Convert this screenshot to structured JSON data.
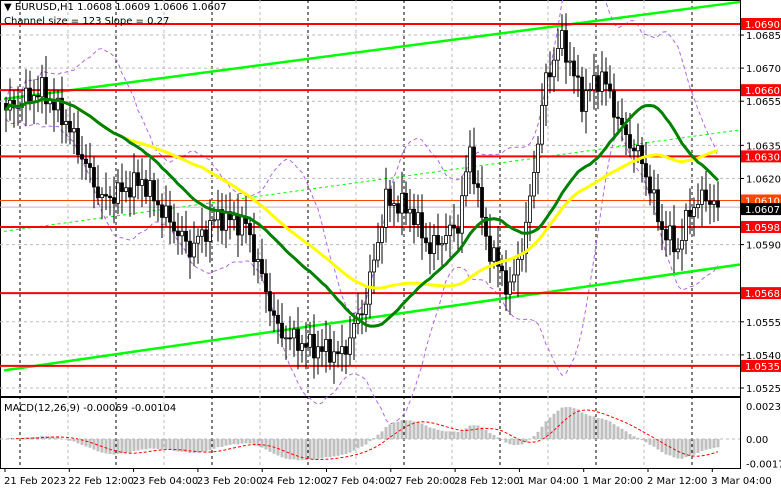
{
  "header": {
    "symbol_line": "EURUSD,H1  1.0608 1.0609 1.0606 1.0607",
    "channel_line": "Channel size = 123 Slope = 0.27",
    "triangle_icon": "triangle-down-icon"
  },
  "macd_label": "MACD(12,26,9) -0.00069 -0.00104",
  "colors": {
    "bull": "#ffffff",
    "bear": "#000000",
    "level": "#ff0000",
    "ma_fast": "#008000",
    "ma_slow": "#ffff00",
    "channel": "#00ff00",
    "envelope": "#b266e0",
    "macd_hist": "#c0c0c0",
    "macd_signal": "#ff0000",
    "current_line": "#ff4500"
  },
  "chart_data": {
    "type": "candlestick",
    "symbol": "EURUSD",
    "timeframe": "H1",
    "ylim": [
      1.052,
      1.07
    ],
    "y_ticks": [
      "1.0685",
      "1.0670",
      "1.0655",
      "1.0635",
      "1.0620",
      "1.0590",
      "1.0555",
      "1.0540",
      "1.0525"
    ],
    "x_ticks": [
      "21 Feb 2023",
      "22 Feb 12:00",
      "23 Feb 04:00",
      "23 Feb 20:00",
      "24 Feb 12:00",
      "27 Feb 04:00",
      "27 Feb 20:00",
      "28 Feb 12:00",
      "1 Mar 04:00",
      "1 Mar 20:00",
      "2 Mar 12:00",
      "3 Mar 04:00"
    ],
    "levels": [
      "1.0690",
      "1.0660",
      "1.0630",
      "1.0598",
      "1.0568",
      "1.0535"
    ],
    "current_levels": {
      "ask": "1.0610",
      "bid": "1.0607"
    },
    "close_keypoints": [
      [
        0,
        1.0651
      ],
      [
        9,
        1.066
      ],
      [
        15,
        1.0646
      ],
      [
        24,
        1.061
      ],
      [
        34,
        1.0619
      ],
      [
        40,
        1.0603
      ],
      [
        46,
        1.0588
      ],
      [
        53,
        1.0603
      ],
      [
        60,
        1.0599
      ],
      [
        68,
        1.0551
      ],
      [
        74,
        1.0545
      ],
      [
        84,
        1.054
      ],
      [
        90,
        1.0565
      ],
      [
        95,
        1.061
      ],
      [
        101,
        1.0606
      ],
      [
        106,
        1.0588
      ],
      [
        113,
        1.0599
      ],
      [
        116,
        1.0633
      ],
      [
        120,
        1.0592
      ],
      [
        126,
        1.0569
      ],
      [
        130,
        1.0597
      ],
      [
        135,
        1.0665
      ],
      [
        139,
        1.0683
      ],
      [
        144,
        1.0656
      ],
      [
        149,
        1.0667
      ],
      [
        154,
        1.0642
      ],
      [
        159,
        1.0628
      ],
      [
        164,
        1.0597
      ],
      [
        168,
        1.0588
      ],
      [
        171,
        1.0606
      ],
      [
        175,
        1.0612
      ],
      [
        178,
        1.0607
      ]
    ],
    "channel": {
      "upper": [
        1.0656,
        1.07
      ],
      "middle": [
        1.0596,
        1.0642
      ],
      "lower": [
        1.0533,
        1.0581
      ]
    },
    "macd": {
      "params": "12,26,9",
      "value": -0.00069,
      "signal": -0.00104,
      "y_ticks": [
        "0.00238",
        "0.00",
        "-0.00178"
      ]
    }
  }
}
